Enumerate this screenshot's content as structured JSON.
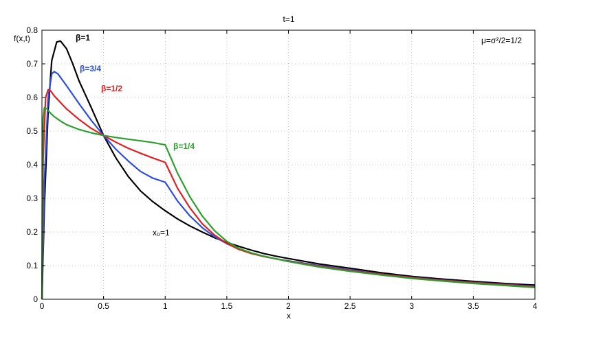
{
  "chart_data": {
    "type": "line",
    "title": "t=1",
    "xlabel": "x",
    "ylabel": "f(x,t)",
    "xlim": [
      0,
      4
    ],
    "ylim": [
      0,
      0.8
    ],
    "grid": true,
    "x_ticks": [
      "0",
      "0.5",
      "1",
      "1.5",
      "2",
      "2.5",
      "3",
      "3.5",
      "4"
    ],
    "y_ticks": [
      "0",
      "0.1",
      "0.2",
      "0.3",
      "0.4",
      "0.5",
      "0.6",
      "0.7",
      "0.8"
    ],
    "annotation_params": "μ=σ²/2=1/2",
    "annotation_x0": "x₀=1",
    "series": [
      {
        "name": "β=1",
        "color": "#000000",
        "x": [
          0,
          0.02,
          0.05,
          0.08,
          0.12,
          0.15,
          0.2,
          0.25,
          0.3,
          0.4,
          0.5,
          0.6,
          0.7,
          0.8,
          0.9,
          1.0,
          1.1,
          1.2,
          1.3,
          1.4,
          1.5,
          1.6,
          1.7,
          1.8,
          1.9,
          2.0,
          2.25,
          2.5,
          2.75,
          3.0,
          3.25,
          3.5,
          3.75,
          4.0
        ],
        "y": [
          0,
          0.28,
          0.56,
          0.71,
          0.765,
          0.768,
          0.745,
          0.7,
          0.65,
          0.57,
          0.487,
          0.42,
          0.365,
          0.322,
          0.29,
          0.263,
          0.239,
          0.218,
          0.2,
          0.183,
          0.169,
          0.157,
          0.146,
          0.136,
          0.128,
          0.121,
          0.105,
          0.092,
          0.079,
          0.068,
          0.06,
          0.053,
          0.047,
          0.042
        ]
      },
      {
        "name": "β=3/4",
        "color": "#2b4de0",
        "x": [
          0,
          0.02,
          0.05,
          0.08,
          0.1,
          0.13,
          0.2,
          0.3,
          0.4,
          0.5,
          0.6,
          0.7,
          0.8,
          0.9,
          1.0,
          1.1,
          1.2,
          1.3,
          1.4,
          1.5,
          1.6,
          1.7,
          1.8,
          1.9,
          2.0,
          2.25,
          2.5,
          2.75,
          3.0,
          3.25,
          3.5,
          3.75,
          4.0
        ],
        "y": [
          0,
          0.35,
          0.6,
          0.67,
          0.677,
          0.67,
          0.635,
          0.582,
          0.532,
          0.487,
          0.446,
          0.411,
          0.38,
          0.36,
          0.348,
          0.292,
          0.248,
          0.213,
          0.186,
          0.165,
          0.149,
          0.137,
          0.128,
          0.12,
          0.114,
          0.1,
          0.087,
          0.075,
          0.065,
          0.057,
          0.05,
          0.044,
          0.039
        ]
      },
      {
        "name": "β=1/2",
        "color": "#e02020",
        "x": [
          0,
          0.01,
          0.03,
          0.05,
          0.07,
          0.1,
          0.15,
          0.2,
          0.3,
          0.4,
          0.5,
          0.6,
          0.7,
          0.8,
          0.9,
          1.0,
          1.1,
          1.2,
          1.3,
          1.4,
          1.5,
          1.6,
          1.7,
          1.8,
          1.9,
          2.0,
          2.25,
          2.5,
          2.75,
          3.0,
          3.25,
          3.5,
          3.75,
          4.0
        ],
        "y": [
          0,
          0.42,
          0.6,
          0.623,
          0.62,
          0.605,
          0.585,
          0.566,
          0.535,
          0.508,
          0.487,
          0.467,
          0.449,
          0.434,
          0.42,
          0.407,
          0.33,
          0.272,
          0.225,
          0.191,
          0.166,
          0.148,
          0.136,
          0.127,
          0.12,
          0.113,
          0.098,
          0.085,
          0.074,
          0.064,
          0.056,
          0.049,
          0.043,
          0.037
        ]
      },
      {
        "name": "β=1/4",
        "color": "#2ca02c",
        "x": [
          0,
          0.005,
          0.01,
          0.02,
          0.04,
          0.07,
          0.1,
          0.15,
          0.2,
          0.3,
          0.4,
          0.5,
          0.6,
          0.7,
          0.8,
          0.9,
          1.0,
          1.1,
          1.2,
          1.3,
          1.4,
          1.5,
          1.6,
          1.7,
          1.8,
          1.9,
          2.0,
          2.25,
          2.5,
          2.75,
          3.0,
          3.25,
          3.5,
          3.75,
          4.0
        ],
        "y": [
          0,
          0.45,
          0.54,
          0.57,
          0.566,
          0.553,
          0.543,
          0.53,
          0.519,
          0.505,
          0.495,
          0.487,
          0.481,
          0.476,
          0.471,
          0.466,
          0.459,
          0.375,
          0.305,
          0.248,
          0.204,
          0.172,
          0.151,
          0.138,
          0.128,
          0.12,
          0.112,
          0.096,
          0.083,
          0.072,
          0.062,
          0.054,
          0.047,
          0.041,
          0.035
        ]
      }
    ]
  }
}
